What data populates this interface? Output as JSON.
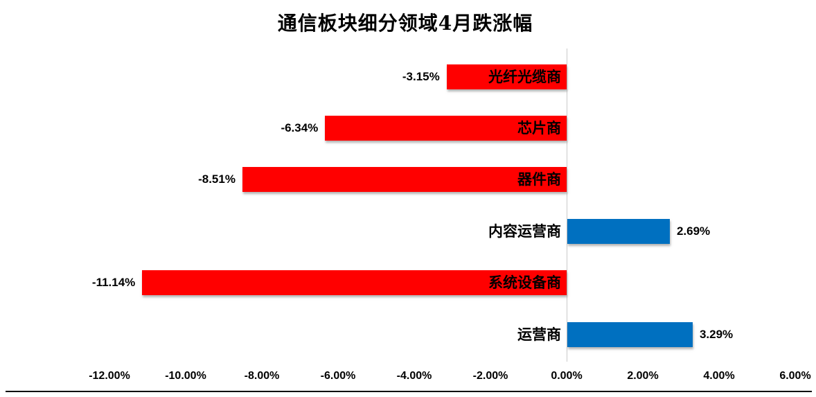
{
  "chart_data": {
    "type": "bar",
    "orientation": "horizontal",
    "title": "通信板块细分领域4月跌涨幅",
    "xlabel": "",
    "ylabel": "",
    "categories": [
      "光纤光缆商",
      "芯片商",
      "器件商",
      "内容运营商",
      "系统设备商",
      "运营商"
    ],
    "values": [
      -3.15,
      -6.34,
      -8.51,
      2.69,
      -11.14,
      3.29
    ],
    "value_labels": [
      "-3.15%",
      "-6.34%",
      "-8.51%",
      "2.69%",
      "-11.14%",
      "3.29%"
    ],
    "xlim": [
      -12,
      6
    ],
    "x_tick_values": [
      -12,
      -10,
      -8,
      -6,
      -4,
      -2,
      0,
      2,
      4,
      6
    ],
    "x_tick_labels": [
      "-12.00%",
      "-10.00%",
      "-8.00%",
      "-6.00%",
      "-4.00%",
      "-2.00%",
      "0.00%",
      "2.00%",
      "4.00%",
      "6.00%"
    ],
    "grid": false,
    "legend": false,
    "colors": {
      "negative_bar": "#FF0000",
      "positive_bar": "#0070C0",
      "zero_axis_line": "#C9C9C9",
      "baseline": "#000000",
      "text": "#000000",
      "background": "#FFFFFF"
    }
  }
}
